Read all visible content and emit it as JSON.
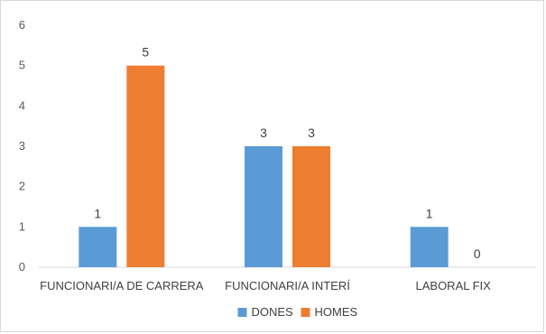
{
  "chart_data": {
    "type": "bar",
    "categories": [
      "FUNCIONARI/A DE CARRERA",
      "FUNCIONARI/A INTERÍ",
      "LABORAL FIX"
    ],
    "series": [
      {
        "name": "DONES",
        "values": [
          1,
          3,
          1
        ],
        "color": "#5B9BD5"
      },
      {
        "name": "HOMES",
        "values": [
          5,
          3,
          0
        ],
        "color": "#ED7D31"
      }
    ],
    "yticks": [
      0,
      1,
      2,
      3,
      4,
      5,
      6
    ],
    "ylim": [
      0,
      6
    ],
    "grid": false,
    "legend": "bottom",
    "data_labels": true,
    "axis_color": "#d9d9d9"
  }
}
